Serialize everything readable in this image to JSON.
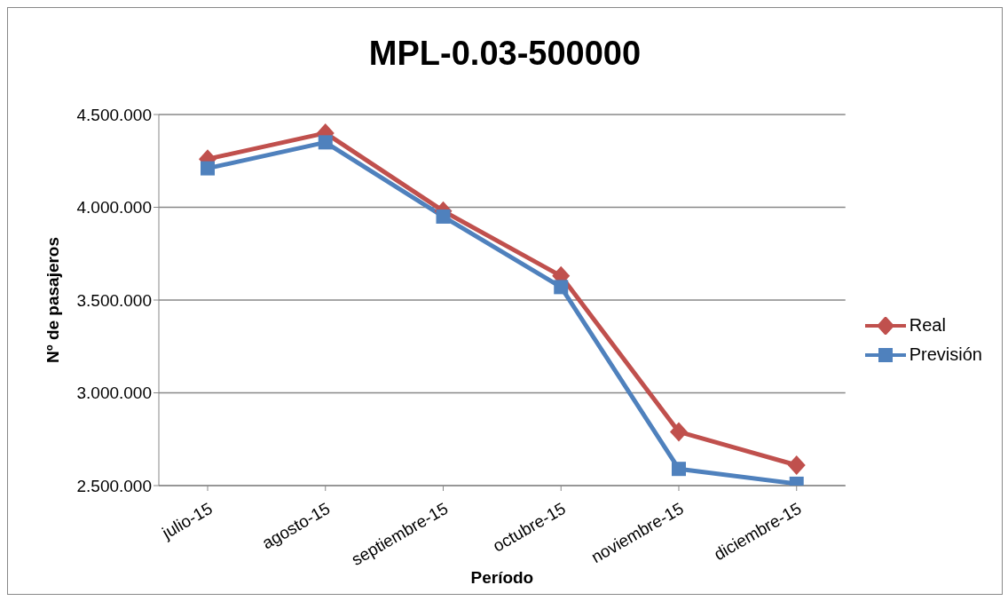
{
  "chart_data": {
    "type": "line",
    "title": "MPL-0.03-500000",
    "xlabel": "Período",
    "ylabel": "Nº de pasajeros",
    "categories": [
      "julio-15",
      "agosto-15",
      "septiembre-15",
      "octubre-15",
      "noviembre-15",
      "diciembre-15"
    ],
    "series": [
      {
        "name": "Real",
        "color": "#c0504d",
        "marker": "diamond",
        "values": [
          4260000,
          4400000,
          3980000,
          3630000,
          2790000,
          2610000
        ]
      },
      {
        "name": "Previsión",
        "color": "#4f81bd",
        "marker": "square",
        "values": [
          4210000,
          4350000,
          3950000,
          3570000,
          2590000,
          2510000
        ]
      }
    ],
    "ylim": [
      2500000,
      4500000
    ],
    "yticks": [
      {
        "value": 2500000,
        "label": "2.500.000"
      },
      {
        "value": 3000000,
        "label": "3.000.000"
      },
      {
        "value": 3500000,
        "label": "3.500.000"
      },
      {
        "value": 4000000,
        "label": "4.000.000"
      },
      {
        "value": 4500000,
        "label": "4.500.000"
      }
    ],
    "grid": "y",
    "legend": "right",
    "line_style": "solid"
  }
}
